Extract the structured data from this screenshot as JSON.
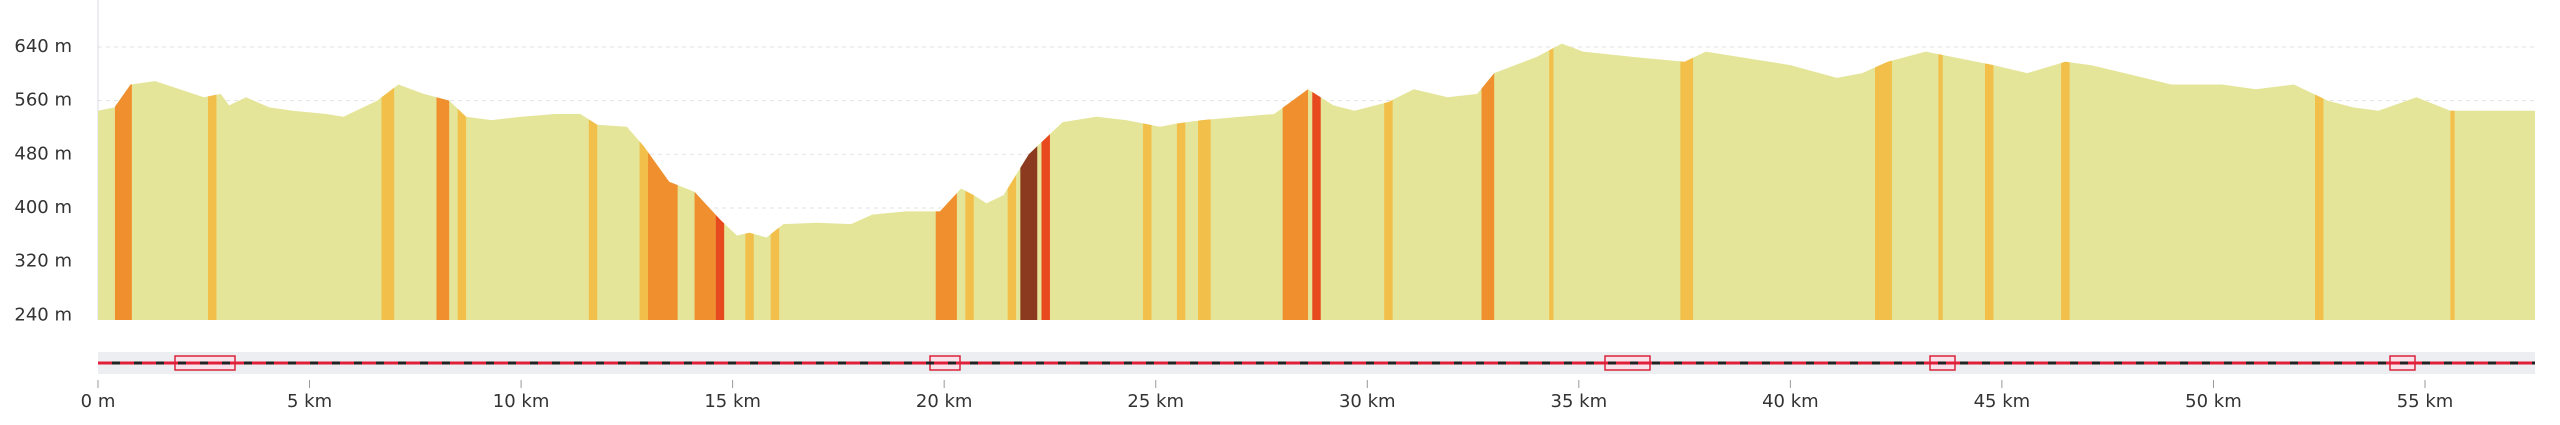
{
  "chart_data": {
    "type": "area",
    "color": "#e5e599",
    "x": [
      0,
      0.39,
      0.77,
      1.35,
      1.93,
      2.5,
      2.9,
      3.1,
      3.5,
      4.05,
      4.6,
      5.4,
      5.8,
      6.6,
      7.1,
      7.7,
      8.3,
      8.7,
      9.3,
      10,
      10.8,
      11.4,
      11.8,
      12.5,
      12.9,
      13.5,
      14.1,
      14.7,
      15.1,
      15.4,
      15.8,
      16.2,
      17,
      17.8,
      18.3,
      19.1,
      19.9,
      20.4,
      20.7,
      21,
      21.4,
      22,
      22.8,
      23.6,
      24.3,
      25.1,
      25.5,
      26.1,
      27,
      27.8,
      28.6,
      29.2,
      29.7,
      30.5,
      31.1,
      31.9,
      32.6,
      33,
      34,
      34.6,
      35.1,
      36.3,
      37.5,
      38,
      39,
      40,
      41.1,
      41.7,
      42.3,
      43.2,
      44,
      44.8,
      45.6,
      46.5,
      47.1,
      47.9,
      49,
      50.2,
      51,
      51.9,
      52.7,
      53.3,
      53.9,
      54.8,
      55.6,
      56.4,
      57.6
    ],
    "values": [
      545,
      550,
      584,
      589,
      577,
      565,
      570,
      553,
      565,
      550,
      545,
      540,
      536,
      560,
      584,
      570,
      560,
      536,
      531,
      536,
      540,
      540,
      524,
      521,
      492,
      439,
      424,
      383,
      359,
      363,
      356,
      376,
      378,
      376,
      390,
      395,
      395,
      429,
      419,
      407,
      419,
      480,
      528,
      536,
      531,
      521,
      526,
      531,
      536,
      540,
      577,
      553,
      545,
      558,
      577,
      565,
      570,
      601,
      625,
      645,
      633,
      625,
      618,
      633,
      623,
      613,
      594,
      601,
      618,
      633,
      623,
      613,
      601,
      618,
      613,
      601,
      584,
      584,
      577,
      584,
      560,
      550,
      545,
      565,
      545,
      545,
      545
    ],
    "highlights": [
      {
        "x": [
          0.4,
          0.8
        ],
        "color": "#ef8f2e"
      },
      {
        "x": [
          2.6,
          2.8
        ],
        "color": "#f2c04a"
      },
      {
        "x": [
          6.7,
          7.0
        ],
        "color": "#f2c04a"
      },
      {
        "x": [
          8.0,
          8.3
        ],
        "color": "#ef8f2e"
      },
      {
        "x": [
          8.5,
          8.7
        ],
        "color": "#f2c04a"
      },
      {
        "x": [
          11.6,
          11.8
        ],
        "color": "#f2c04a"
      },
      {
        "x": [
          12.8,
          13.0
        ],
        "color": "#f2c04a"
      },
      {
        "x": [
          13.0,
          13.7
        ],
        "color": "#ef8f2e"
      },
      {
        "x": [
          14.1,
          14.6
        ],
        "color": "#ef8f2e"
      },
      {
        "x": [
          14.6,
          14.8
        ],
        "color": "#e84a1f"
      },
      {
        "x": [
          15.3,
          15.5
        ],
        "color": "#f2c04a"
      },
      {
        "x": [
          15.9,
          16.1
        ],
        "color": "#f2c04a"
      },
      {
        "x": [
          19.8,
          20.3
        ],
        "color": "#ef8f2e"
      },
      {
        "x": [
          20.5,
          20.7
        ],
        "color": "#f2c04a"
      },
      {
        "x": [
          21.5,
          21.7
        ],
        "color": "#f2c04a"
      },
      {
        "x": [
          21.8,
          22.2
        ],
        "color": "#8b3a20"
      },
      {
        "x": [
          22.3,
          22.5
        ],
        "color": "#e84a1f"
      },
      {
        "x": [
          24.7,
          24.9
        ],
        "color": "#f2c04a"
      },
      {
        "x": [
          25.5,
          25.7
        ],
        "color": "#f2c04a"
      },
      {
        "x": [
          26.0,
          26.3
        ],
        "color": "#f2c04a"
      },
      {
        "x": [
          28.0,
          28.6
        ],
        "color": "#ef8f2e"
      },
      {
        "x": [
          28.7,
          28.9
        ],
        "color": "#e84a1f"
      },
      {
        "x": [
          30.4,
          30.6
        ],
        "color": "#f2c04a"
      },
      {
        "x": [
          32.7,
          33.0
        ],
        "color": "#ef8f2e"
      },
      {
        "x": [
          34.3,
          34.4
        ],
        "color": "#f2c04a"
      },
      {
        "x": [
          37.4,
          37.7
        ],
        "color": "#f2c04a"
      },
      {
        "x": [
          42.0,
          42.4
        ],
        "color": "#f2c04a"
      },
      {
        "x": [
          43.5,
          43.6
        ],
        "color": "#f2c04a"
      },
      {
        "x": [
          44.6,
          44.8
        ],
        "color": "#f2c04a"
      },
      {
        "x": [
          46.4,
          46.6
        ],
        "color": "#f2c04a"
      },
      {
        "x": [
          52.4,
          52.6
        ],
        "color": "#f2c04a"
      },
      {
        "x": [
          55.6,
          55.7
        ],
        "color": "#f2c04a"
      }
    ],
    "xlim": [
      0,
      57.6
    ],
    "xticks": [
      {
        "value": 0,
        "label": "0 m"
      },
      {
        "value": 5,
        "label": "5 km"
      },
      {
        "value": 10,
        "label": "10 km"
      },
      {
        "value": 15,
        "label": "15 km"
      },
      {
        "value": 20,
        "label": "20 km"
      },
      {
        "value": 25,
        "label": "25 km"
      },
      {
        "value": 30,
        "label": "30 km"
      },
      {
        "value": 35,
        "label": "35 km"
      },
      {
        "value": 40,
        "label": "40 km"
      },
      {
        "value": 45,
        "label": "45 km"
      },
      {
        "value": 50,
        "label": "50 km"
      },
      {
        "value": 55,
        "label": "55 km"
      }
    ],
    "ylim": [
      233,
      710
    ],
    "yticks": [
      {
        "value": 240,
        "label": "240 m"
      },
      {
        "value": 320,
        "label": "320 m"
      },
      {
        "value": 400,
        "label": "400 m"
      },
      {
        "value": 480,
        "label": "480 m"
      },
      {
        "value": 560,
        "label": "560 m"
      },
      {
        "value": 640,
        "label": "640 m"
      }
    ],
    "grid": true
  }
}
